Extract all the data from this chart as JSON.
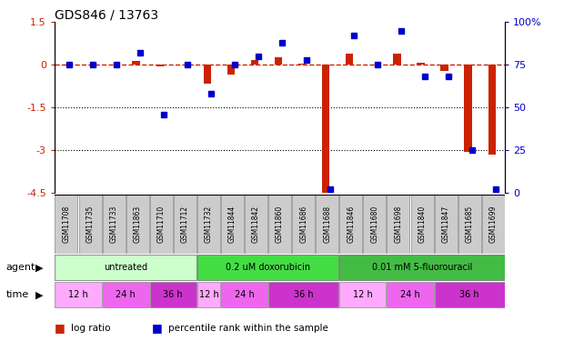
{
  "title": "GDS846 / 13763",
  "samples": [
    "GSM11708",
    "GSM11735",
    "GSM11733",
    "GSM11863",
    "GSM11710",
    "GSM11712",
    "GSM11732",
    "GSM11844",
    "GSM11842",
    "GSM11860",
    "GSM11686",
    "GSM11688",
    "GSM11846",
    "GSM11680",
    "GSM11698",
    "GSM11840",
    "GSM11847",
    "GSM11685",
    "GSM11699"
  ],
  "log_ratio": [
    0.0,
    0.0,
    0.0,
    0.13,
    -0.05,
    0.02,
    -0.65,
    -0.35,
    0.18,
    0.25,
    0.05,
    -4.5,
    0.38,
    0.02,
    0.4,
    0.06,
    -0.2,
    -3.05,
    -3.15
  ],
  "percentile": [
    75,
    75,
    75,
    82,
    46,
    75,
    58,
    75,
    80,
    88,
    78,
    2,
    92,
    75,
    95,
    68,
    68,
    25,
    2
  ],
  "ylim_left": [
    -4.5,
    1.5
  ],
  "ylim_right": [
    0,
    100
  ],
  "yticks_left": [
    1.5,
    0,
    -1.5,
    -3,
    -4.5
  ],
  "yticks_right": [
    100,
    75,
    50,
    25,
    0
  ],
  "hlines": [
    -1.5,
    -3.0
  ],
  "agent_groups": [
    {
      "label": "untreated",
      "start": 0,
      "end": 6,
      "color": "#CCFFCC"
    },
    {
      "label": "0.2 uM doxorubicin",
      "start": 6,
      "end": 12,
      "color": "#44DD44"
    },
    {
      "label": "0.01 mM 5-fluorouracil",
      "start": 12,
      "end": 19,
      "color": "#44BB44"
    }
  ],
  "time_groups": [
    {
      "label": "12 h",
      "start": 0,
      "end": 2,
      "color": "#FFAAFF"
    },
    {
      "label": "24 h",
      "start": 2,
      "end": 4,
      "color": "#EE66EE"
    },
    {
      "label": "36 h",
      "start": 4,
      "end": 6,
      "color": "#CC33CC"
    },
    {
      "label": "12 h",
      "start": 6,
      "end": 7,
      "color": "#FFAAFF"
    },
    {
      "label": "24 h",
      "start": 7,
      "end": 9,
      "color": "#EE66EE"
    },
    {
      "label": "36 h",
      "start": 9,
      "end": 12,
      "color": "#CC33CC"
    },
    {
      "label": "12 h",
      "start": 12,
      "end": 14,
      "color": "#FFAAFF"
    },
    {
      "label": "24 h",
      "start": 14,
      "end": 16,
      "color": "#EE66EE"
    },
    {
      "label": "36 h",
      "start": 16,
      "end": 19,
      "color": "#CC33CC"
    }
  ],
  "bar_color": "#CC2200",
  "dot_color": "#0000CC",
  "zero_line_color": "#CC2200",
  "label_bg_color": "#CCCCCC",
  "label_edge_color": "#888888"
}
